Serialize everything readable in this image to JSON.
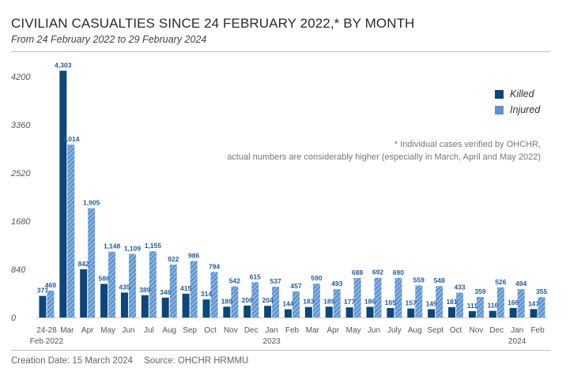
{
  "header": {
    "title": "CIVILIAN CASUALTIES SINCE 24 FEBRUARY 2022,* BY MONTH",
    "subtitle": "From 24 February 2022 to 29 February 2024"
  },
  "note": {
    "line1": "* Individual cases verified by OHCHR,",
    "line2": "actual numbers are considerably higher (especially in March, April and May 2022)"
  },
  "footer": {
    "creation": "Creation Date: 15 March 2024",
    "source": "Source: OHCHR HRMMU"
  },
  "colors": {
    "killed": "#0c467a",
    "injured": "#5c93d0",
    "injured_stripe": "#9cc0e8",
    "label_text": "#1f5c9c"
  },
  "chart_data": {
    "type": "bar",
    "title": "CIVILIAN CASUALTIES SINCE 24 FEBRUARY 2022,* BY MONTH",
    "xlabel": "",
    "ylabel": "",
    "ylim": [
      0,
      4200
    ],
    "yticks": [
      0,
      840,
      1680,
      2520,
      3360,
      4200
    ],
    "ytick_labels": [
      "0",
      "840",
      "1680",
      "2520",
      "3360",
      "4200"
    ],
    "grid": false,
    "legend_position": "top-right",
    "categories": [
      "24-28",
      "Mar",
      "Apr",
      "May",
      "Jun",
      "Jul",
      "Aug",
      "Sep",
      "Oct",
      "Nov",
      "Dec",
      "Jan",
      "Feb",
      "Mar",
      "Apr",
      "May",
      "Jun",
      "July",
      "Aug",
      "Sept",
      "Oct",
      "Nov",
      "Dec",
      "Jan",
      "Feb"
    ],
    "year_labels": [
      {
        "index": 0,
        "text": "Feb 2022"
      },
      {
        "index": 11,
        "text": "2023"
      },
      {
        "index": 23,
        "text": "2024"
      }
    ],
    "series": [
      {
        "name": "Killed",
        "values": [
          377,
          4303,
          842,
          586,
          435,
          389,
          346,
          415,
          314,
          189,
          208,
          204,
          144,
          183,
          189,
          177,
          186,
          165,
          157,
          145,
          181,
          111,
          116,
          166,
          147
        ],
        "labels": [
          "377",
          "4,303",
          "842",
          "586",
          "435",
          "389",
          "346",
          "415",
          "314",
          "189",
          "208",
          "204",
          "144",
          "183",
          "189",
          "177",
          "186",
          "165",
          "157",
          "145",
          "181",
          "111",
          "116",
          "166",
          "147"
        ]
      },
      {
        "name": "Injured",
        "values": [
          469,
          3014,
          1905,
          1148,
          1109,
          1155,
          922,
          986,
          794,
          542,
          615,
          537,
          457,
          590,
          493,
          688,
          692,
          690,
          559,
          548,
          433,
          359,
          526,
          494,
          355
        ],
        "labels": [
          "469",
          "3,014",
          "1,905",
          "1,148",
          "1,109",
          "1,155",
          "922",
          "986",
          "794",
          "542",
          "615",
          "537",
          "457",
          "590",
          "493",
          "688",
          "692",
          "690",
          "559",
          "548",
          "433",
          "359",
          "526",
          "494",
          "355"
        ]
      }
    ]
  }
}
